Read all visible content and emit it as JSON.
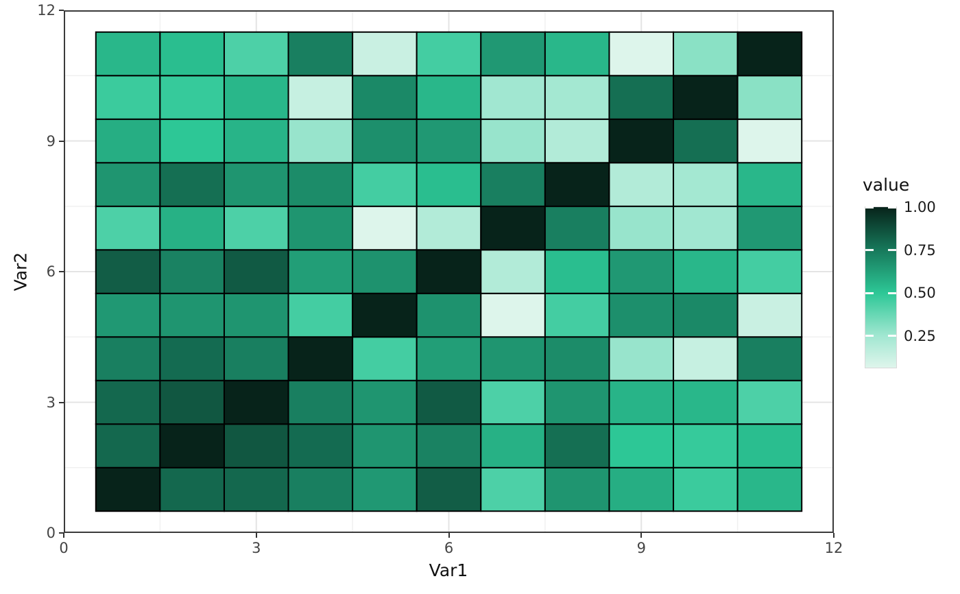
{
  "chart_data": {
    "type": "heatmap",
    "title": "",
    "xlabel": "Var1",
    "ylabel": "Var2",
    "xlim": [
      0,
      12
    ],
    "ylim": [
      0,
      12
    ],
    "x_tick_labels": [
      "0",
      "3",
      "6",
      "9",
      "12"
    ],
    "y_tick_labels": [
      "0",
      "3",
      "6",
      "9",
      "12"
    ],
    "x_ticks": [
      0,
      3,
      6,
      9,
      12
    ],
    "y_ticks": [
      0,
      3,
      6,
      9,
      12
    ],
    "grid": {
      "major": [
        3,
        6,
        9
      ],
      "minor": [
        1.5,
        4.5,
        7.5,
        10.5
      ]
    },
    "x_categories": [
      1,
      2,
      3,
      4,
      5,
      6,
      7,
      8,
      9,
      10,
      11
    ],
    "y_categories": [
      1,
      2,
      3,
      4,
      5,
      6,
      7,
      8,
      9,
      10,
      11
    ],
    "rows_ordered": "var2 = 1 (bottom) to 11 (top), each row lists values for var1 = 1..11",
    "matrix": [
      [
        1.0,
        0.8,
        0.8,
        0.73,
        0.65,
        0.83,
        0.43,
        0.66,
        0.58,
        0.47,
        0.55
      ],
      [
        0.8,
        1.0,
        0.85,
        0.79,
        0.66,
        0.72,
        0.57,
        0.78,
        0.5,
        0.48,
        0.53
      ],
      [
        0.8,
        0.85,
        1.0,
        0.73,
        0.66,
        0.84,
        0.43,
        0.66,
        0.56,
        0.55,
        0.43
      ],
      [
        0.73,
        0.79,
        0.73,
        1.0,
        0.45,
        0.63,
        0.66,
        0.69,
        0.27,
        0.14,
        0.73
      ],
      [
        0.65,
        0.66,
        0.66,
        0.45,
        1.0,
        0.67,
        0.07,
        0.45,
        0.68,
        0.7,
        0.13
      ],
      [
        0.83,
        0.72,
        0.84,
        0.63,
        0.67,
        1.0,
        0.2,
        0.53,
        0.65,
        0.55,
        0.45
      ],
      [
        0.43,
        0.57,
        0.43,
        0.66,
        0.07,
        0.2,
        1.0,
        0.73,
        0.27,
        0.25,
        0.65
      ],
      [
        0.66,
        0.78,
        0.66,
        0.69,
        0.45,
        0.53,
        0.73,
        1.0,
        0.2,
        0.24,
        0.55
      ],
      [
        0.58,
        0.5,
        0.56,
        0.27,
        0.68,
        0.65,
        0.27,
        0.2,
        1.0,
        0.78,
        0.07
      ],
      [
        0.47,
        0.48,
        0.55,
        0.14,
        0.7,
        0.55,
        0.25,
        0.24,
        0.78,
        1.0,
        0.3
      ],
      [
        0.55,
        0.53,
        0.43,
        0.73,
        0.13,
        0.45,
        0.65,
        0.55,
        0.07,
        0.3,
        1.0
      ]
    ],
    "legend": {
      "title": "value",
      "position": "right",
      "tick_values": [
        1.0,
        0.75,
        0.5,
        0.25
      ],
      "tick_labels": [
        "1.00",
        "0.75",
        "0.50",
        "0.25"
      ],
      "domain": [
        0.065,
        1.0
      ]
    },
    "color_scale": {
      "stops": [
        {
          "v": 0.07,
          "c": "#ddf5eb"
        },
        {
          "v": 0.25,
          "c": "#a1e7d1"
        },
        {
          "v": 0.5,
          "c": "#2dc796"
        },
        {
          "v": 0.75,
          "c": "#17795b"
        },
        {
          "v": 1.0,
          "c": "#07231a"
        }
      ],
      "tile_border": "#000000",
      "panel_border": "#3a3a3a",
      "grid_major": "#e4e4e4",
      "grid_minor": "#f0f0f0",
      "tick_mark": "#333333"
    }
  }
}
